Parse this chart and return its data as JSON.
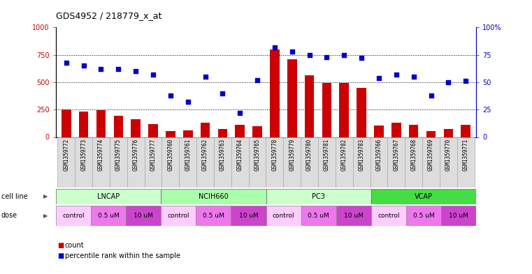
{
  "title": "GDS4952 / 218779_x_at",
  "gsm_labels": [
    "GSM1359772",
    "GSM1359773",
    "GSM1359774",
    "GSM1359775",
    "GSM1359776",
    "GSM1359777",
    "GSM1359760",
    "GSM1359761",
    "GSM1359762",
    "GSM1359763",
    "GSM1359764",
    "GSM1359765",
    "GSM1359778",
    "GSM1359779",
    "GSM1359780",
    "GSM1359781",
    "GSM1359782",
    "GSM1359783",
    "GSM1359766",
    "GSM1359767",
    "GSM1359768",
    "GSM1359769",
    "GSM1359770",
    "GSM1359771"
  ],
  "bar_values": [
    250,
    230,
    245,
    195,
    165,
    115,
    55,
    60,
    130,
    75,
    110,
    100,
    800,
    710,
    560,
    490,
    490,
    450,
    105,
    130,
    110,
    55,
    75,
    110
  ],
  "dot_values": [
    68,
    65,
    62,
    62,
    60,
    57,
    38,
    32,
    55,
    40,
    22,
    52,
    82,
    78,
    75,
    73,
    75,
    72,
    54,
    57,
    55,
    38,
    50,
    51
  ],
  "cell_lines": [
    {
      "label": "LNCAP",
      "start": 0,
      "end": 6,
      "color": "#ccffcc"
    },
    {
      "label": "NCIH660",
      "start": 6,
      "end": 12,
      "color": "#aaffaa"
    },
    {
      "label": "PC3",
      "start": 12,
      "end": 18,
      "color": "#ccffcc"
    },
    {
      "label": "VCAP",
      "start": 18,
      "end": 24,
      "color": "#44dd44"
    }
  ],
  "dose_groups": [
    {
      "label": "control",
      "start": 0,
      "end": 2,
      "color": "#ffccff"
    },
    {
      "label": "0.5 uM",
      "start": 2,
      "end": 4,
      "color": "#ee77ee"
    },
    {
      "label": "10 uM",
      "start": 4,
      "end": 6,
      "color": "#cc44cc"
    },
    {
      "label": "control",
      "start": 6,
      "end": 8,
      "color": "#ffccff"
    },
    {
      "label": "0.5 uM",
      "start": 8,
      "end": 10,
      "color": "#ee77ee"
    },
    {
      "label": "10 uM",
      "start": 10,
      "end": 12,
      "color": "#cc44cc"
    },
    {
      "label": "control",
      "start": 12,
      "end": 14,
      "color": "#ffccff"
    },
    {
      "label": "0.5 uM",
      "start": 14,
      "end": 16,
      "color": "#ee77ee"
    },
    {
      "label": "10 uM",
      "start": 16,
      "end": 18,
      "color": "#cc44cc"
    },
    {
      "label": "control",
      "start": 18,
      "end": 20,
      "color": "#ffccff"
    },
    {
      "label": "0.5 uM",
      "start": 20,
      "end": 22,
      "color": "#ee77ee"
    },
    {
      "label": "10 uM",
      "start": 22,
      "end": 24,
      "color": "#cc44cc"
    }
  ],
  "bar_color": "#cc0000",
  "dot_color": "#0000cc",
  "ylim_left": [
    0,
    1000
  ],
  "ylim_right": [
    0,
    100
  ],
  "yticks_left": [
    0,
    250,
    500,
    750,
    1000
  ],
  "yticks_right": [
    0,
    25,
    50,
    75,
    100
  ],
  "ytick_labels_left": [
    "0",
    "250",
    "500",
    "750",
    "1000"
  ],
  "ytick_labels_right": [
    "0",
    "25",
    "50",
    "75",
    "100%"
  ],
  "background_color": "#ffffff"
}
